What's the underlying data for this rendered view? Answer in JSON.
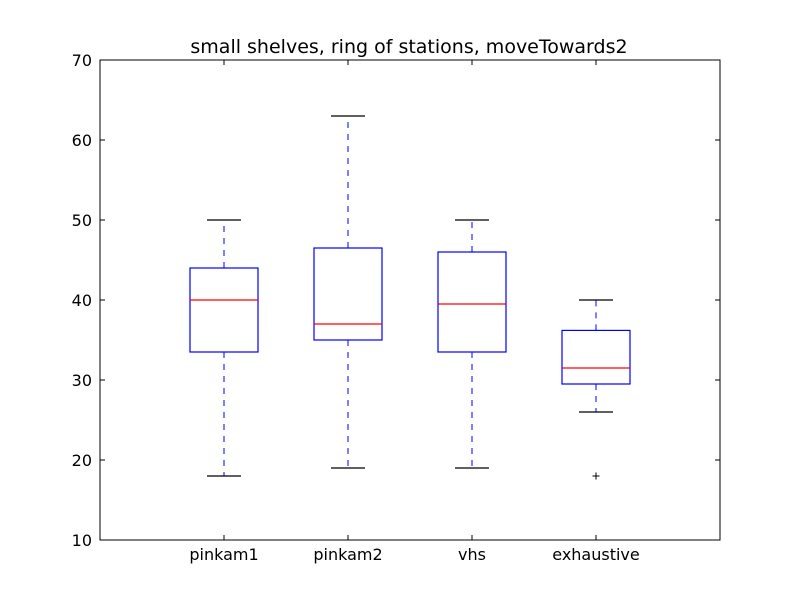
{
  "chart_data": {
    "type": "box",
    "title": "small shelves, ring of stations, moveTowards2",
    "xlabel": "",
    "ylabel": "",
    "ylim": [
      10,
      70
    ],
    "yticks": [
      10,
      20,
      30,
      40,
      50,
      60,
      70
    ],
    "grid": false,
    "categories": [
      "pinkam1",
      "pinkam2",
      "vhs",
      "exhaustive"
    ],
    "boxes": [
      {
        "name": "pinkam1",
        "whisker_low": 18,
        "q1": 33.5,
        "median": 40,
        "q3": 44,
        "whisker_high": 50,
        "outliers": []
      },
      {
        "name": "pinkam2",
        "whisker_low": 19,
        "q1": 35,
        "median": 37,
        "q3": 46.5,
        "whisker_high": 63,
        "outliers": []
      },
      {
        "name": "vhs",
        "whisker_low": 19,
        "q1": 33.5,
        "median": 39.5,
        "q3": 46,
        "whisker_high": 50,
        "outliers": []
      },
      {
        "name": "exhaustive",
        "whisker_low": 26,
        "q1": 29.5,
        "median": 31.5,
        "q3": 36.2,
        "whisker_high": 40,
        "outliers": [
          18
        ]
      }
    ],
    "colors": {
      "box": "#0000ff",
      "median": "#ff0000",
      "whisker_cap": "#000000",
      "whisker": "#0000ff",
      "outlier": "#000000"
    }
  }
}
